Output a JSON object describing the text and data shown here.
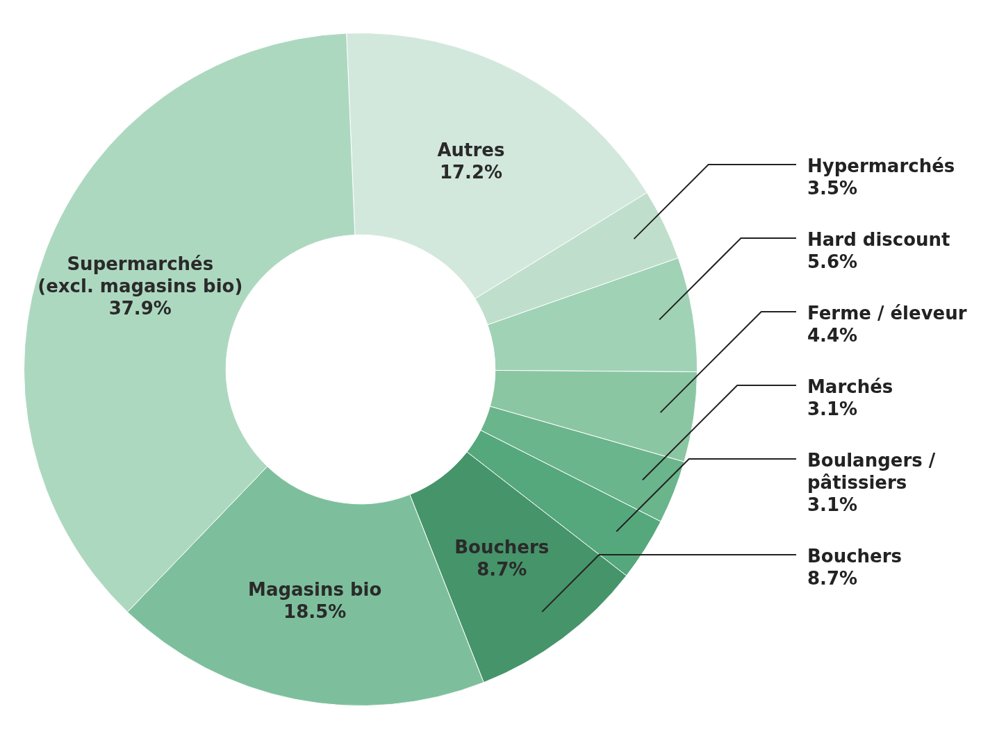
{
  "chart_data": {
    "type": "donut",
    "categories": [
      "Autres",
      "Hypermarchés",
      "Hard discount",
      "Ferme / éleveur",
      "Marchés",
      "Boulangers / pâtissiers",
      "Bouchers",
      "Magasins bio",
      "Supermarchés (excl. magasins bio)"
    ],
    "values": [
      17.2,
      3.5,
      5.6,
      4.4,
      3.1,
      3.1,
      8.7,
      18.5,
      37.9
    ],
    "value_labels": [
      "17.2%",
      "3.5%",
      "5.6%",
      "4.4%",
      "3.1%",
      "3.1%",
      "8.7%",
      "18.5%",
      "37.9%"
    ],
    "colors": [
      "#d2e8dc",
      "#bfdfcc",
      "#a0d2b6",
      "#8bc6a3",
      "#6ab58c",
      "#55a87c",
      "#46946a",
      "#7dbf9c",
      "#add8c0"
    ],
    "legend": false
  }
}
